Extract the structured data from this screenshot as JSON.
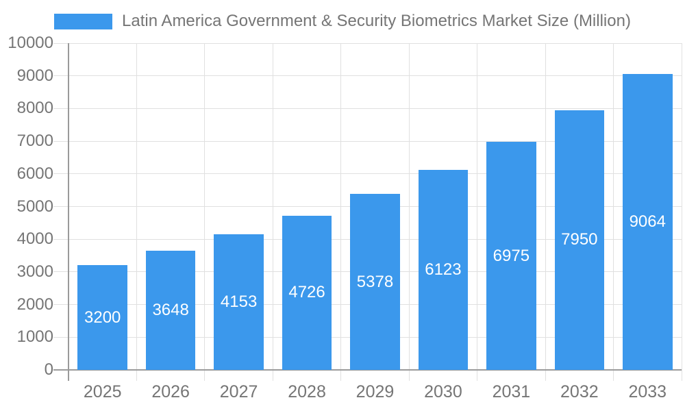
{
  "chart_data": {
    "type": "bar",
    "title": "Latin America Government & Security Biometrics Market Size (Million)",
    "legend_entries": [
      "Latin America Government & Security Biometrics Market Size (Million)"
    ],
    "categories": [
      "2025",
      "2026",
      "2027",
      "2028",
      "2029",
      "2030",
      "2031",
      "2032",
      "2033"
    ],
    "values": [
      3200,
      3648,
      4153,
      4726,
      5378,
      6123,
      6975,
      7950,
      9064
    ],
    "xlabel": "",
    "ylabel": "",
    "ylim": [
      0,
      10000
    ],
    "ytick_step": 1000,
    "y_tick_labels": [
      "0",
      "1000",
      "2000",
      "3000",
      "4000",
      "5000",
      "6000",
      "7000",
      "8000",
      "9000",
      "10000"
    ],
    "grid": true,
    "legend_position": "top",
    "bar_color": "#3b98ec",
    "bar_label_color": "#ffffff",
    "axis_text_color": "#757575",
    "grid_color": "#e0e0e0",
    "axis_line_color": "#9a9a9a"
  }
}
